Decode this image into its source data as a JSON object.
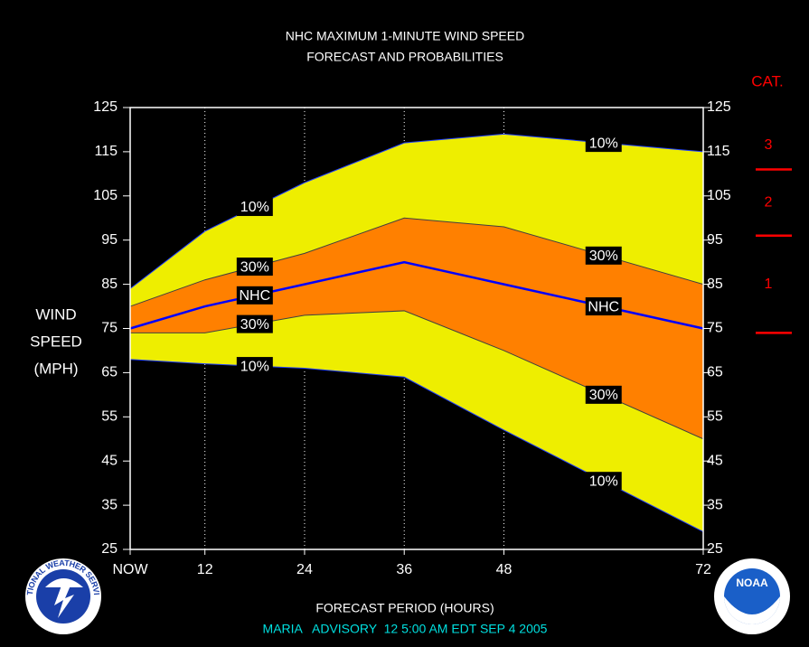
{
  "chart_data": {
    "type": "band",
    "title": [
      "NHC MAXIMUM 1-MINUTE WIND SPEED",
      "FORECAST AND PROBABILITIES"
    ],
    "y_label": [
      "WIND",
      "SPEED",
      "(MPH)"
    ],
    "x_label": "FORECAST PERIOD (HOURS)",
    "footer": "MARIA   ADVISORY  12 5:00 AM EDT SEP 4 2005",
    "x": [
      3,
      12,
      24,
      36,
      48,
      72
    ],
    "xlim": [
      3,
      72
    ],
    "xticks": [
      {
        "value": 3,
        "label": "NOW"
      },
      12,
      24,
      36,
      48,
      72
    ],
    "ylim": [
      25,
      125
    ],
    "yticks": [
      25,
      35,
      45,
      55,
      65,
      75,
      85,
      95,
      105,
      115,
      125
    ],
    "grid": true,
    "series": [
      {
        "name": "10%",
        "color": "#eeee00",
        "values": [
          84,
          97,
          108,
          117,
          119,
          115
        ]
      },
      {
        "name": "30%",
        "color": "#ff8000",
        "values": [
          80,
          86,
          92,
          100,
          98,
          85
        ]
      },
      {
        "name": "NHC",
        "color": "#0000ff",
        "values": [
          75,
          80,
          85,
          90,
          85,
          75
        ]
      },
      {
        "name": "30%",
        "color": "#ff8000",
        "values": [
          74,
          74,
          78,
          79,
          70,
          50
        ]
      },
      {
        "name": "10%",
        "color": "#eeee00",
        "values": [
          68,
          67,
          66,
          64,
          52,
          29
        ]
      }
    ],
    "category_scale": {
      "title": "CAT.",
      "labels": [
        "3",
        "2",
        "1"
      ],
      "thresholds": [
        111,
        96,
        74
      ],
      "color": "#ff0000"
    },
    "logos": {
      "left": "NATIONAL WEATHER SERVICE",
      "right": "NOAA"
    }
  }
}
